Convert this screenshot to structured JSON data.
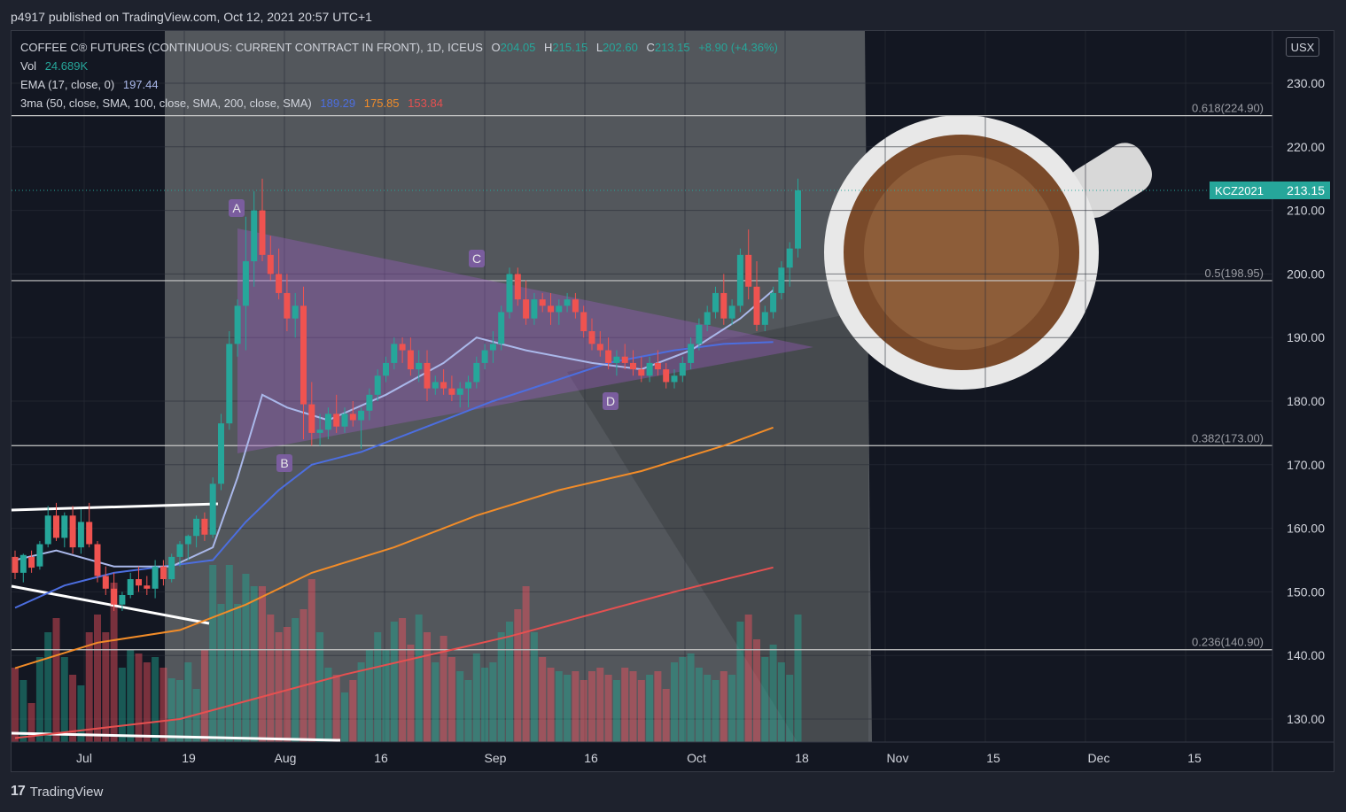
{
  "header": {
    "publish_text": "p4917 published on TradingView.com, Oct 12, 2021 20:57 UTC+1"
  },
  "legend": {
    "title": "COFFEE C® FUTURES (CONTINUOUS: CURRENT CONTRACT IN FRONT), 1D, ICEUS",
    "o_label": "O",
    "o_value": "204.05",
    "h_label": "H",
    "h_value": "215.15",
    "l_label": "L",
    "l_value": "202.60",
    "c_label": "C",
    "c_value": "213.15",
    "change": "+8.90 (+4.36%)",
    "vol_label": "Vol",
    "vol_value": "24.689K",
    "ema_label": "EMA (17, close, 0)",
    "ema_value": "197.44",
    "ma3_label": "3ma (50, close, SMA, 100, close, SMA, 200, close, SMA)",
    "ma50_value": "189.29",
    "ma100_value": "175.85",
    "ma200_value": "153.84"
  },
  "currency_button": "USX",
  "price_tag": {
    "symbol": "KCZ2021",
    "value": "213.15"
  },
  "footer": {
    "brand": "TradingView",
    "logo_icon": "tradingview-logo-icon"
  },
  "colors": {
    "up": "#26a69a",
    "down": "#ef5350",
    "ema": "#aab8ea",
    "ma50": "#4c6ee0",
    "ma100": "#f28c28",
    "ma200": "#e65050",
    "triangle": "#9c5bbf"
  },
  "chart_data": {
    "type": "candlestick",
    "y_ticks": [
      "230.00",
      "220.00",
      "210.00",
      "200.00",
      "190.00",
      "180.00",
      "170.00",
      "160.00",
      "150.00",
      "140.00",
      "130.00"
    ],
    "ylim": [
      125,
      235
    ],
    "x_ticks": [
      "Jul",
      "19",
      "Aug",
      "16",
      "Sep",
      "16",
      "Oct",
      "18",
      "Nov",
      "15",
      "Dec",
      "15"
    ],
    "fib_levels": [
      {
        "label": "0.618(224.90)",
        "value": 224.9
      },
      {
        "label": "0.5(198.95)",
        "value": 198.95
      },
      {
        "label": "0.382(173.00)",
        "value": 173.0
      },
      {
        "label": "0.236(140.90)",
        "value": 140.9
      }
    ],
    "pattern_labels": [
      "A",
      "B",
      "C",
      "D"
    ],
    "candles": [
      [
        155.5,
        156.5,
        152,
        153,
        0.42
      ],
      [
        153,
        156,
        151.5,
        155.8,
        0.35
      ],
      [
        155.5,
        156.5,
        153,
        153.8,
        0.22
      ],
      [
        154,
        158,
        153.5,
        157.5,
        0.48
      ],
      [
        157.5,
        163.5,
        157,
        162,
        0.62
      ],
      [
        162,
        164,
        158,
        158.5,
        0.7
      ],
      [
        158.5,
        162.5,
        157,
        162,
        0.48
      ],
      [
        162,
        163.5,
        156,
        157,
        0.38
      ],
      [
        157,
        163,
        156,
        161,
        0.32
      ],
      [
        161,
        164,
        157,
        157.5,
        0.62
      ],
      [
        157.5,
        158,
        151.5,
        152.5,
        0.72
      ],
      [
        152.5,
        154,
        149.5,
        150.5,
        0.62
      ],
      [
        150.5,
        153,
        147,
        148,
        0.9
      ],
      [
        148,
        150,
        147,
        149.5,
        0.42
      ],
      [
        149.5,
        153,
        149,
        152,
        0.52
      ],
      [
        152,
        154,
        150,
        151,
        0.5
      ],
      [
        151,
        152.5,
        149.5,
        150.5,
        0.45
      ],
      [
        150.5,
        155,
        149,
        154,
        0.48
      ],
      [
        154,
        155,
        151,
        152,
        0.42
      ],
      [
        152,
        156,
        151.5,
        155.5,
        0.36
      ],
      [
        155.5,
        158,
        154,
        157.5,
        0.35
      ],
      [
        157.5,
        159,
        155,
        158.8,
        0.45
      ],
      [
        158.8,
        162,
        157,
        161.5,
        0.3
      ],
      [
        161.5,
        162.5,
        158,
        159,
        0.52
      ],
      [
        159,
        168,
        158.5,
        167,
        1.0
      ],
      [
        167,
        178,
        166,
        176.5,
        0.78
      ],
      [
        176.5,
        191,
        175.5,
        189,
        1.0
      ],
      [
        189,
        196,
        187,
        195,
        0.78
      ],
      [
        195,
        209,
        188,
        202,
        0.95
      ],
      [
        202,
        213,
        198,
        210,
        0.88
      ],
      [
        210,
        215,
        202,
        203,
        0.88
      ],
      [
        203,
        206,
        199,
        200,
        0.72
      ],
      [
        200,
        204,
        196,
        197,
        0.62
      ],
      [
        197,
        200,
        191,
        193,
        0.65
      ],
      [
        193,
        197,
        190,
        195,
        0.7
      ],
      [
        195,
        198,
        174,
        179.5,
        0.75
      ],
      [
        179.5,
        183,
        173,
        175,
        0.92
      ],
      [
        175,
        178,
        173,
        175.5,
        0.62
      ],
      [
        175.5,
        179,
        174,
        178,
        0.42
      ],
      [
        178,
        181,
        175,
        176,
        0.38
      ],
      [
        176,
        179,
        175,
        178,
        0.28
      ],
      [
        178,
        180,
        176,
        177,
        0.35
      ],
      [
        177,
        179,
        172.5,
        178.5,
        0.45
      ],
      [
        178.5,
        182,
        177,
        181,
        0.52
      ],
      [
        181,
        185,
        180,
        184,
        0.62
      ],
      [
        184,
        187,
        183,
        186,
        0.52
      ],
      [
        186,
        190,
        185,
        189,
        0.68
      ],
      [
        189,
        190,
        186,
        188,
        0.7
      ],
      [
        188,
        190,
        184,
        185,
        0.55
      ],
      [
        185,
        188,
        183,
        186,
        0.72
      ],
      [
        186,
        188,
        180,
        182,
        0.62
      ],
      [
        182,
        184,
        181,
        183,
        0.45
      ],
      [
        183,
        185,
        181,
        182,
        0.6
      ],
      [
        182,
        184,
        180,
        181,
        0.48
      ],
      [
        181,
        183,
        179,
        182,
        0.4
      ],
      [
        182,
        184,
        179,
        183,
        0.35
      ],
      [
        183,
        187,
        182,
        186,
        0.5
      ],
      [
        186,
        189,
        185,
        188,
        0.42
      ],
      [
        188,
        191,
        186,
        189,
        0.45
      ],
      [
        189,
        195,
        188,
        194,
        0.62
      ],
      [
        194,
        201,
        193,
        200,
        0.68
      ],
      [
        200,
        201,
        195,
        196,
        0.75
      ],
      [
        196,
        199,
        192,
        193,
        0.88
      ],
      [
        193,
        197,
        192,
        196,
        0.62
      ],
      [
        196,
        197,
        194,
        195,
        0.48
      ],
      [
        195,
        197,
        192,
        194,
        0.42
      ],
      [
        194,
        196,
        192,
        195,
        0.4
      ],
      [
        195,
        197,
        194,
        196,
        0.38
      ],
      [
        196,
        197,
        193,
        194,
        0.4
      ],
      [
        194,
        195,
        190,
        191,
        0.35
      ],
      [
        191,
        193,
        188,
        189,
        0.4
      ],
      [
        189,
        191,
        187,
        188,
        0.42
      ],
      [
        188,
        190,
        185,
        186,
        0.38
      ],
      [
        186,
        188,
        184,
        187,
        0.35
      ],
      [
        187,
        189,
        185,
        186,
        0.42
      ],
      [
        186,
        188,
        184,
        185,
        0.4
      ],
      [
        185,
        187,
        183,
        184,
        0.35
      ],
      [
        184,
        187,
        183,
        186,
        0.38
      ],
      [
        186,
        188,
        184,
        185,
        0.4
      ],
      [
        185,
        186,
        182,
        183,
        0.3
      ],
      [
        183,
        185,
        182,
        184,
        0.45
      ],
      [
        184,
        187,
        183,
        186,
        0.48
      ],
      [
        186,
        190,
        185,
        189,
        0.5
      ],
      [
        189,
        193,
        188,
        192,
        0.42
      ],
      [
        192,
        195,
        191,
        194,
        0.38
      ],
      [
        194,
        198,
        193,
        197,
        0.35
      ],
      [
        197,
        200,
        192,
        193,
        0.4
      ],
      [
        193,
        196,
        192,
        195,
        0.38
      ],
      [
        195,
        204,
        194,
        203,
        0.68
      ],
      [
        203,
        207,
        196,
        198,
        0.72
      ],
      [
        198,
        202,
        191,
        192,
        0.58
      ],
      [
        192,
        195,
        191,
        194,
        0.48
      ],
      [
        194,
        198,
        193,
        197,
        0.55
      ],
      [
        197,
        202,
        196,
        201,
        0.45
      ],
      [
        201,
        205,
        198,
        204,
        0.38
      ],
      [
        204,
        215,
        202.6,
        213.15,
        0.72
      ]
    ]
  }
}
